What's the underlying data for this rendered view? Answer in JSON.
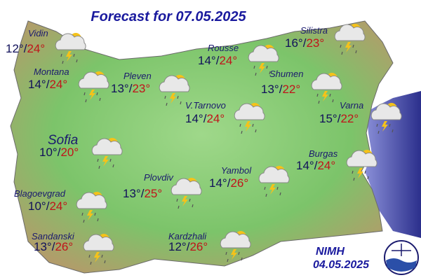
{
  "title": "Forecast for 07.05.2025",
  "separator": "/",
  "cities": [
    {
      "name": "Vidin",
      "min": "12°",
      "max": "24°"
    },
    {
      "name": "Montana",
      "min": "14°",
      "max": "24°"
    },
    {
      "name": "Pleven",
      "min": "13°",
      "max": "23°"
    },
    {
      "name": "Rousse",
      "min": "14°",
      "max": "24°"
    },
    {
      "name": "Silistra",
      "min": "16°",
      "max": "23°"
    },
    {
      "name": "Shumen",
      "min": "13°",
      "max": "22°"
    },
    {
      "name": "V.Tarnovo",
      "min": "14°",
      "max": "24°"
    },
    {
      "name": "Varna",
      "min": "15°",
      "max": "22°"
    },
    {
      "name": "Sofia",
      "min": "10°",
      "max": "20°"
    },
    {
      "name": "Burgas",
      "min": "14°",
      "max": "24°"
    },
    {
      "name": "Yambol",
      "min": "14°",
      "max": "26°"
    },
    {
      "name": "Plovdiv",
      "min": "13°",
      "max": "25°"
    },
    {
      "name": "Blagoevgrad",
      "min": "10°",
      "max": "24°"
    },
    {
      "name": "Sandanski",
      "min": "13°",
      "max": "26°"
    },
    {
      "name": "Kardzhali",
      "min": "12°",
      "max": "26°"
    }
  ],
  "footer": {
    "agency": "NIMH",
    "date": "04.05.2025"
  }
}
